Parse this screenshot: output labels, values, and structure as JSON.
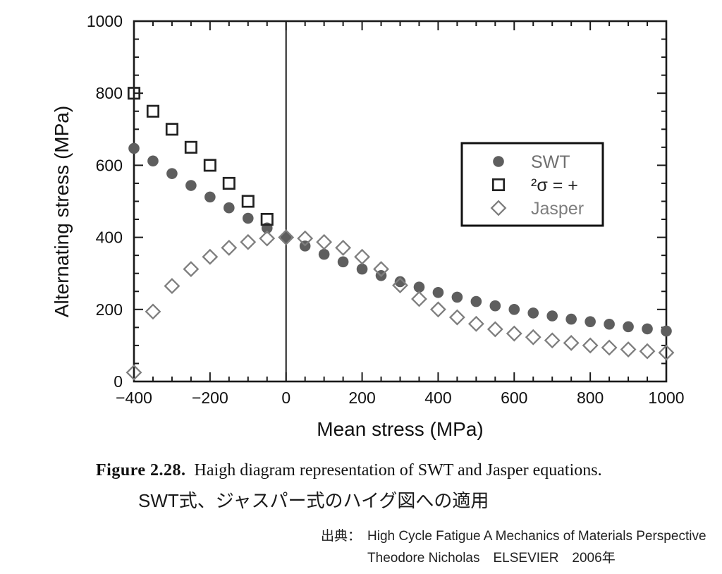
{
  "chart_data": {
    "type": "scatter",
    "title": "",
    "xlabel": "Mean stress (MPa)",
    "ylabel": "Alternating stress (MPa)",
    "xlim": [
      -400,
      1000
    ],
    "ylim": [
      0,
      1000
    ],
    "grid": false,
    "x_major_ticks": [
      -400,
      -200,
      0,
      200,
      400,
      600,
      800,
      1000
    ],
    "x_tick_labels": [
      "−400",
      "−200",
      "0",
      "200",
      "400",
      "600",
      "800",
      "1000"
    ],
    "y_major_ticks": [
      0,
      200,
      400,
      600,
      800,
      1000
    ],
    "y_tick_labels": [
      "0",
      "200",
      "400",
      "600",
      "800",
      "1000"
    ],
    "minor_tick_step": 50,
    "vline_x": 0,
    "axis_color": "#1a1a1a",
    "legend": {
      "position": "upper-right",
      "entries": [
        {
          "label": "SWT",
          "marker": "circle",
          "color": "#5e5e5e",
          "text_color": "#6f6f6f"
        },
        {
          "label": "²σ = +",
          "marker": "square",
          "color": "#222222",
          "text_color": "#222222"
        },
        {
          "label": "Jasper",
          "marker": "diamond",
          "color": "#7e7e7e",
          "text_color": "#7e7e7e"
        }
      ]
    },
    "series": [
      {
        "name": "SWT",
        "marker": "circle",
        "color": "#5e5e5e",
        "fill": true,
        "x": [
          -400,
          -350,
          -300,
          -250,
          -200,
          -150,
          -100,
          -50,
          0,
          50,
          100,
          150,
          200,
          250,
          300,
          350,
          400,
          450,
          500,
          550,
          600,
          650,
          700,
          750,
          800,
          850,
          900,
          950,
          1000
        ],
        "y": [
          647,
          612,
          577,
          544,
          512,
          482,
          453,
          426,
          400,
          376,
          353,
          332,
          312,
          294,
          277,
          262,
          247,
          234,
          222,
          210,
          200,
          190,
          182,
          173,
          166,
          159,
          152,
          146,
          140
        ]
      },
      {
        "name": "²σ = +",
        "marker": "square",
        "color": "#222222",
        "fill": false,
        "x": [
          -400,
          -350,
          -300,
          -250,
          -200,
          -150,
          -100,
          -50
        ],
        "y": [
          800,
          750,
          700,
          650,
          600,
          550,
          500,
          450
        ]
      },
      {
        "name": "Jasper",
        "marker": "diamond",
        "color": "#7e7e7e",
        "fill": false,
        "x": [
          -400,
          -350,
          -300,
          -250,
          -200,
          -150,
          -100,
          -50,
          0,
          50,
          100,
          150,
          200,
          250,
          300,
          350,
          400,
          450,
          500,
          550,
          600,
          650,
          700,
          750,
          800,
          850,
          900,
          950,
          1000
        ],
        "y": [
          25,
          194,
          265,
          312,
          346,
          371,
          387,
          397,
          400,
          397,
          387,
          371,
          346,
          312,
          267,
          229,
          200,
          178,
          160,
          145,
          133,
          123,
          114,
          107,
          100,
          94,
          89,
          84,
          80
        ]
      }
    ]
  },
  "caption": {
    "figure_label": "Figure  2.28.",
    "text": "Haigh diagram representation of SWT and Jasper equations.",
    "japanese": "SWT式、ジャスパー式のハイグ図への適用"
  },
  "source": {
    "label": "出典：",
    "line1": "High Cycle Fatigue  A Mechanics of Materials Perspective",
    "line2": "Theodore Nicholas　ELSEVIER　2006年"
  }
}
